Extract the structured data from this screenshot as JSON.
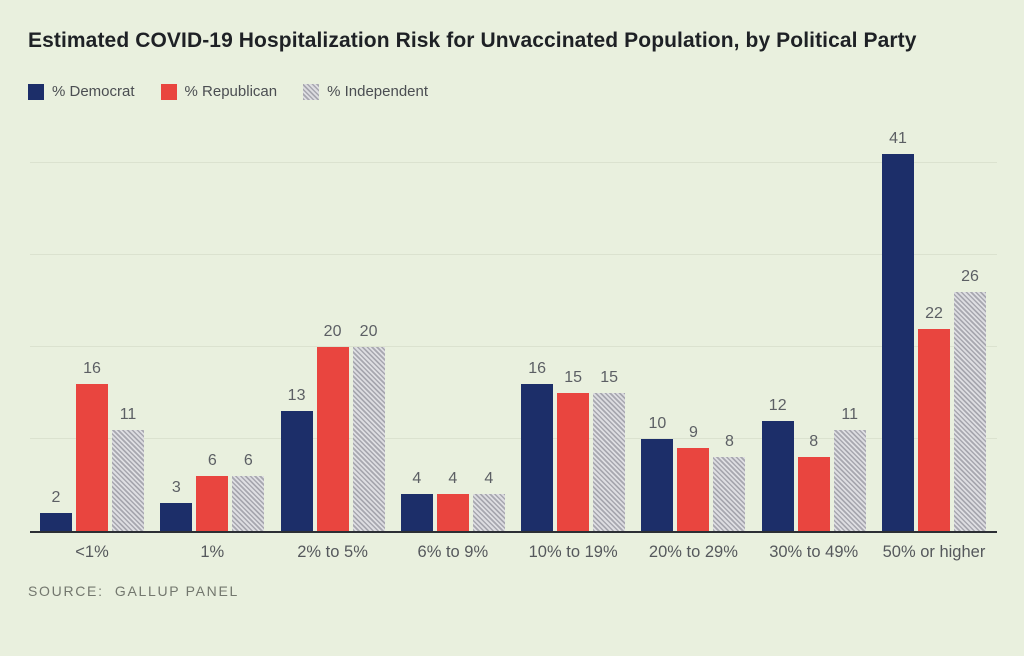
{
  "page": {
    "background": "#e9f0de",
    "accent_navy": "#1c2e69",
    "accent_red": "#e9453f",
    "hatch_gray": "#a7a7af"
  },
  "title": "Estimated COVID-19 Hospitalization Risk for Unvaccinated Population, by Political Party",
  "source": "SOURCE:  GALLUP PANEL",
  "chart_data": {
    "type": "bar",
    "title": "Estimated COVID-19 Hospitalization Risk for Unvaccinated Population, by Political Party",
    "categories": [
      "<1%",
      "1%",
      "2% to 5%",
      "6% to 9%",
      "10% to 19%",
      "20% to 29%",
      "30% to 49%",
      "50% or higher"
    ],
    "series": [
      {
        "name": "% Democrat",
        "color": "#1c2e69",
        "style": "solid",
        "values": [
          2,
          3,
          13,
          4,
          16,
          10,
          12,
          41
        ]
      },
      {
        "name": "% Republican",
        "color": "#e9453f",
        "style": "solid",
        "values": [
          16,
          6,
          20,
          4,
          15,
          9,
          8,
          22
        ]
      },
      {
        "name": "% Independent",
        "color": "#a7a7af",
        "style": "diagonal-hatch",
        "values": [
          11,
          6,
          20,
          4,
          15,
          8,
          11,
          26
        ]
      }
    ],
    "xlabel": "",
    "ylabel": "",
    "ylim": [
      0,
      45
    ],
    "gridlines": [
      10,
      20,
      30,
      40
    ],
    "grid": true,
    "y_axis_labels_shown": false,
    "value_labels": true,
    "legend_position": "top-left",
    "source": "SOURCE:  GALLUP PANEL"
  }
}
